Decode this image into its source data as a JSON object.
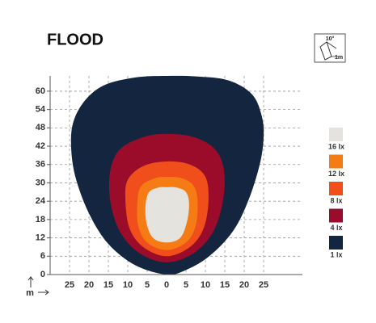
{
  "chart_data": {
    "type": "contour",
    "title": "FLOOD",
    "xlabel": "m",
    "annotations": [
      "10°",
      "1m"
    ],
    "xlim": [
      -30,
      35
    ],
    "ylim": [
      0,
      65
    ],
    "xticks": [
      {
        "value": -25,
        "label": "25"
      },
      {
        "value": -20,
        "label": "20"
      },
      {
        "value": -15,
        "label": "15"
      },
      {
        "value": -10,
        "label": "10"
      },
      {
        "value": -5,
        "label": "5"
      },
      0,
      5,
      10,
      15,
      20,
      25
    ],
    "yticks": [
      0,
      6,
      12,
      18,
      24,
      30,
      36,
      42,
      48,
      54,
      60
    ],
    "grid": true,
    "legend": "right",
    "series": [
      {
        "name": "16 lx",
        "color": "#e4e3de",
        "x": [
          0,
          -3.5,
          -5.2,
          -5.4,
          -4.5,
          -2,
          0,
          2.5,
          5,
          5.8,
          5.2,
          3.5
        ],
        "values": [
          10.5,
          12,
          17,
          23,
          27,
          28.5,
          28.6,
          28.5,
          27,
          23,
          17,
          12
        ]
      },
      {
        "name": "12 lx",
        "color": "#f57c14",
        "x": [
          0,
          -5,
          -7.3,
          -7.5,
          -6.5,
          -3,
          0,
          4,
          7,
          8,
          7.5,
          5
        ],
        "values": [
          8,
          10.5,
          16,
          24,
          29,
          31.5,
          32,
          31.5,
          29,
          24,
          16,
          10.5
        ]
      },
      {
        "name": "8 lx",
        "color": "#f04e1a",
        "x": [
          0,
          -6,
          -9.5,
          -10.6,
          -10,
          -6,
          0,
          6,
          10,
          10.8,
          9.5,
          6
        ],
        "values": [
          6,
          9,
          15,
          24,
          31,
          35.5,
          37,
          36,
          32,
          24,
          15,
          9
        ]
      },
      {
        "name": "4 lx",
        "color": "#9b0c2a",
        "x": [
          0,
          -7,
          -12,
          -14.5,
          -14.5,
          -12,
          -6,
          0,
          7,
          12.5,
          14.8,
          14.5,
          12,
          7
        ],
        "values": [
          4,
          7,
          14,
          24,
          34,
          41,
          45,
          46,
          45,
          41,
          34,
          24,
          14,
          7
        ]
      },
      {
        "name": "1 lx",
        "color": "#14253f",
        "x": [
          0,
          -8,
          -15,
          -20,
          -23.5,
          -24.6,
          -24,
          -21,
          -16,
          -8,
          0,
          8,
          16,
          22,
          24.5,
          25,
          24,
          21,
          17,
          11,
          5
        ],
        "values": [
          0,
          3,
          10,
          20,
          32,
          42,
          50,
          57,
          62,
          64.5,
          65,
          64.8,
          63.5,
          59,
          52,
          45,
          36,
          24,
          14,
          6,
          1.5
        ]
      }
    ]
  }
}
